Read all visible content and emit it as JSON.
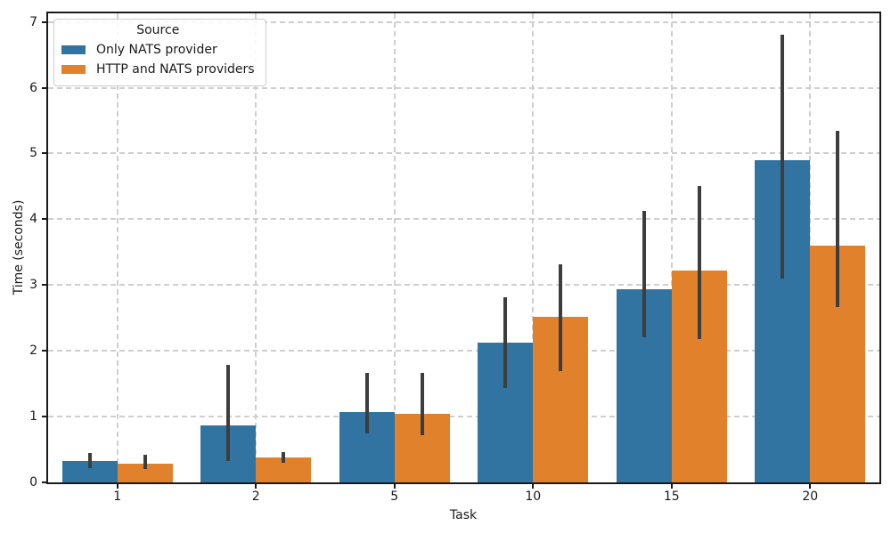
{
  "chart_data": {
    "type": "bar",
    "title": "",
    "xlabel": "Task",
    "ylabel": "Time (seconds)",
    "categories": [
      "1",
      "2",
      "5",
      "10",
      "15",
      "20"
    ],
    "series": [
      {
        "name": "Only NATS provider",
        "color": "#3274A1",
        "values": [
          0.33,
          0.86,
          1.07,
          2.13,
          2.93,
          4.9
        ],
        "err_low": [
          0.22,
          0.32,
          0.75,
          1.43,
          2.21,
          3.1
        ],
        "err_high": [
          0.44,
          1.79,
          1.66,
          2.81,
          4.13,
          6.8
        ]
      },
      {
        "name": "HTTP and NATS providers",
        "color": "#E1812C",
        "values": [
          0.29,
          0.38,
          1.04,
          2.52,
          3.22,
          3.6
        ],
        "err_low": [
          0.2,
          0.3,
          0.72,
          1.69,
          2.18,
          2.67
        ],
        "err_high": [
          0.42,
          0.46,
          1.66,
          3.31,
          4.5,
          5.34
        ]
      }
    ],
    "legend": {
      "title": "Source",
      "position": "upper left"
    },
    "y_ticks": [
      0,
      1,
      2,
      3,
      4,
      5,
      6,
      7
    ],
    "ylim": [
      0,
      7.13
    ],
    "grid": true,
    "grid_style": "dashed",
    "error_bar_color": "#3d3d3d",
    "bar_group_width": 0.8
  }
}
